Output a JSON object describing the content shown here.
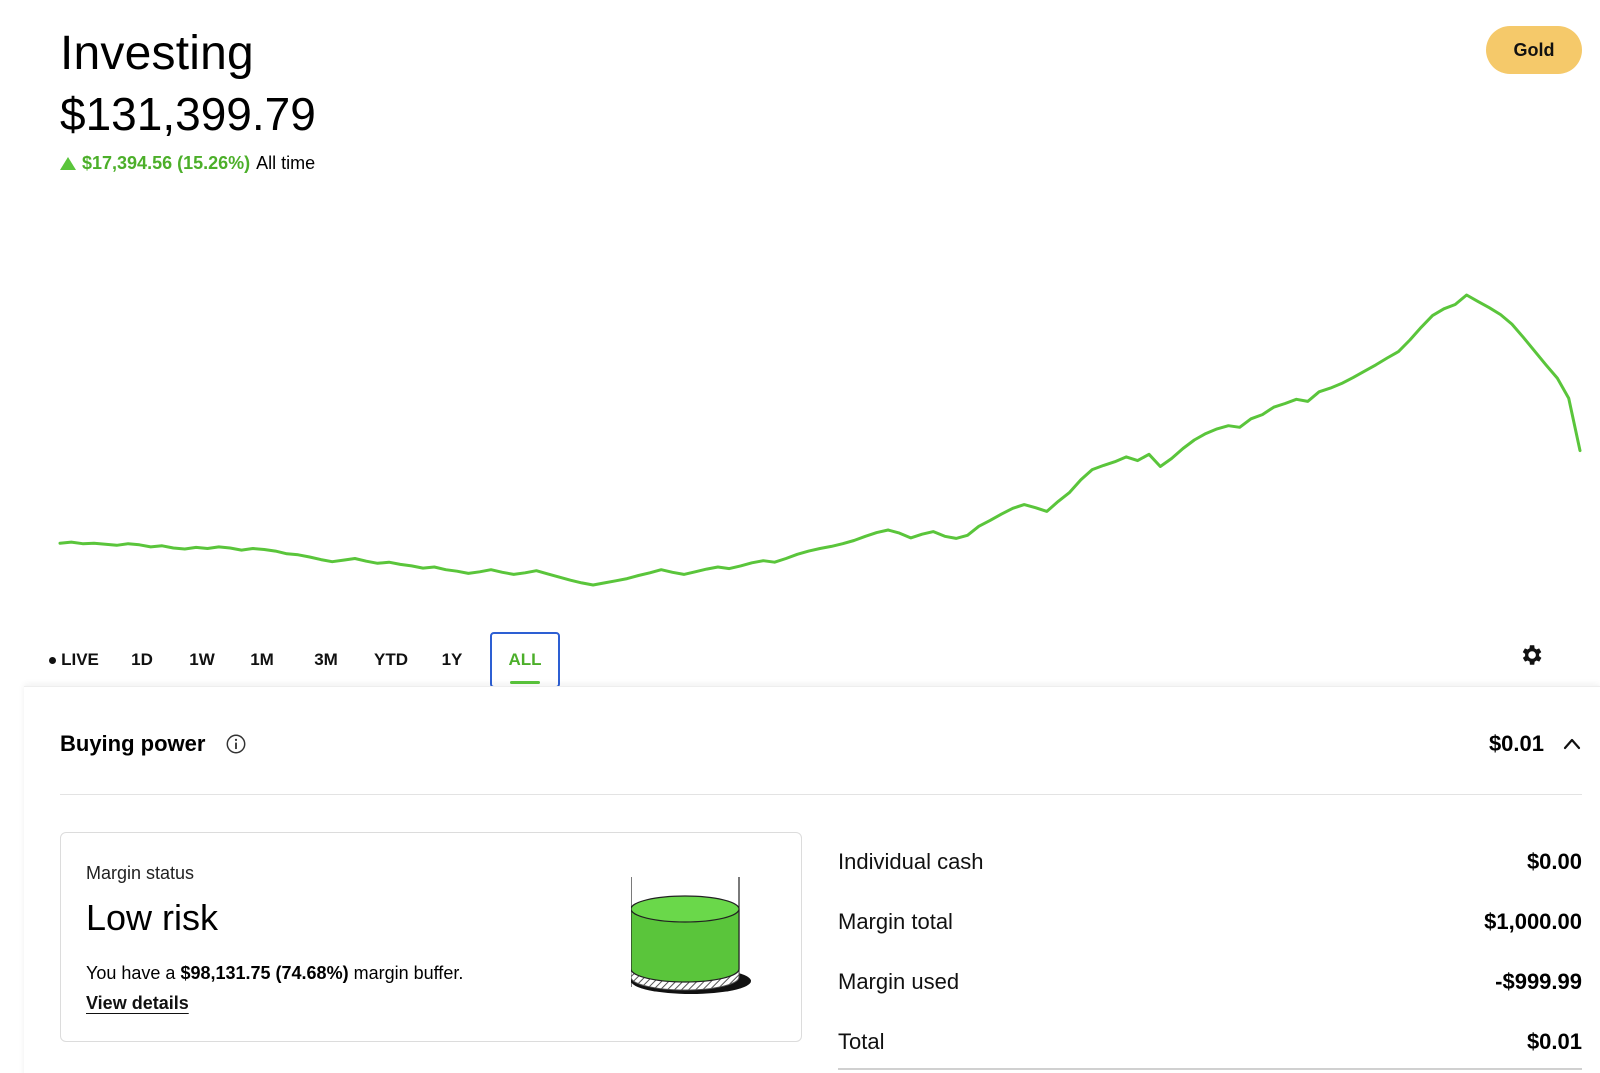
{
  "header": {
    "title": "Investing",
    "balance": "$131,399.79",
    "change_value": "$17,394.56 (15.26%)",
    "change_label": "All time",
    "change_color": "#5ac53b"
  },
  "gold_button": {
    "label": "Gold",
    "color": "#f5c96a"
  },
  "chart": {
    "line_color": "#5ac53b",
    "series": [
      113.9,
      114.1,
      113.8,
      113.9,
      113.7,
      113.5,
      113.8,
      113.6,
      113.2,
      113.4,
      113.0,
      112.8,
      113.1,
      112.9,
      113.2,
      113.0,
      112.6,
      112.9,
      112.7,
      112.4,
      111.9,
      111.7,
      111.3,
      110.8,
      110.4,
      110.7,
      111.0,
      110.5,
      110.1,
      110.3,
      109.9,
      109.6,
      109.2,
      109.4,
      108.9,
      108.6,
      108.2,
      108.5,
      108.9,
      108.4,
      108.0,
      108.3,
      108.7,
      108.1,
      107.5,
      106.9,
      106.4,
      106.0,
      106.4,
      106.8,
      107.2,
      107.8,
      108.3,
      108.9,
      108.4,
      108.0,
      108.5,
      109.0,
      109.4,
      109.1,
      109.6,
      110.2,
      110.6,
      110.3,
      111.0,
      111.8,
      112.4,
      112.9,
      113.3,
      113.8,
      114.4,
      115.2,
      115.9,
      116.4,
      115.8,
      114.9,
      115.6,
      116.1,
      115.2,
      114.8,
      115.4,
      117.1,
      118.2,
      119.4,
      120.5,
      121.2,
      120.6,
      119.9,
      121.8,
      123.5,
      125.9,
      127.8,
      128.6,
      129.3,
      130.2,
      129.5,
      130.7,
      128.4,
      129.9,
      131.8,
      133.4,
      134.6,
      135.5,
      136.1,
      135.8,
      137.4,
      138.2,
      139.6,
      140.3,
      141.1,
      140.7,
      142.5,
      143.2,
      144.1,
      145.2,
      146.4,
      147.6,
      148.9,
      150.1,
      152.3,
      154.7,
      156.9,
      158.2,
      159.0,
      160.8,
      159.6,
      158.4,
      157.1,
      155.3,
      152.8,
      150.2,
      147.6,
      145.1,
      141.3,
      131.4
    ],
    "settings_icon": "gear-icon"
  },
  "ranges": [
    {
      "label": "LIVE",
      "live": true
    },
    {
      "label": "1D"
    },
    {
      "label": "1W"
    },
    {
      "label": "1M"
    },
    {
      "label": "3M"
    },
    {
      "label": "YTD"
    },
    {
      "label": "1Y"
    },
    {
      "label": "ALL",
      "active": true
    }
  ],
  "buying_power": {
    "label": "Buying power",
    "value": "$0.01",
    "info_icon": "info-icon",
    "chevron_icon": "chevron-up-icon"
  },
  "margin": {
    "label": "Margin status",
    "status": "Low risk",
    "text_prefix": "You have a",
    "buffer": "$98,131.75 (74.68%)",
    "text_suffix": "margin buffer.",
    "link": "View details",
    "level_color": "#5ac53b"
  },
  "details": [
    {
      "label": "Individual cash",
      "value": "$0.00"
    },
    {
      "label": "Margin total",
      "value": "$1,000.00"
    },
    {
      "label": "Margin used",
      "value": "-$999.99"
    },
    {
      "label": "Total",
      "value": "$0.01"
    }
  ]
}
